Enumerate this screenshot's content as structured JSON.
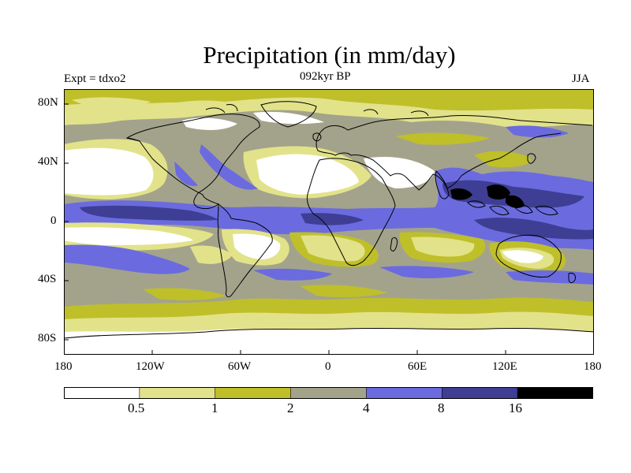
{
  "title": "Precipitation (in mm/day)",
  "experiment_label": "Expt = tdxo2",
  "period_label": "092kyr BP",
  "season_label": "JJA",
  "lat_ticks": [
    "80N",
    "40N",
    "0",
    "40S",
    "80S"
  ],
  "lon_ticks": [
    "180",
    "120W",
    "60W",
    "0",
    "60E",
    "120E",
    "180"
  ],
  "legend": {
    "colors": [
      "#ffffff",
      "#e2e28a",
      "#bfbf2a",
      "#a3a38c",
      "#6b6bdf",
      "#3e3e94",
      "#000000"
    ],
    "boundaries": [
      "0.5",
      "1",
      "2",
      "4",
      "8",
      "16"
    ]
  }
}
